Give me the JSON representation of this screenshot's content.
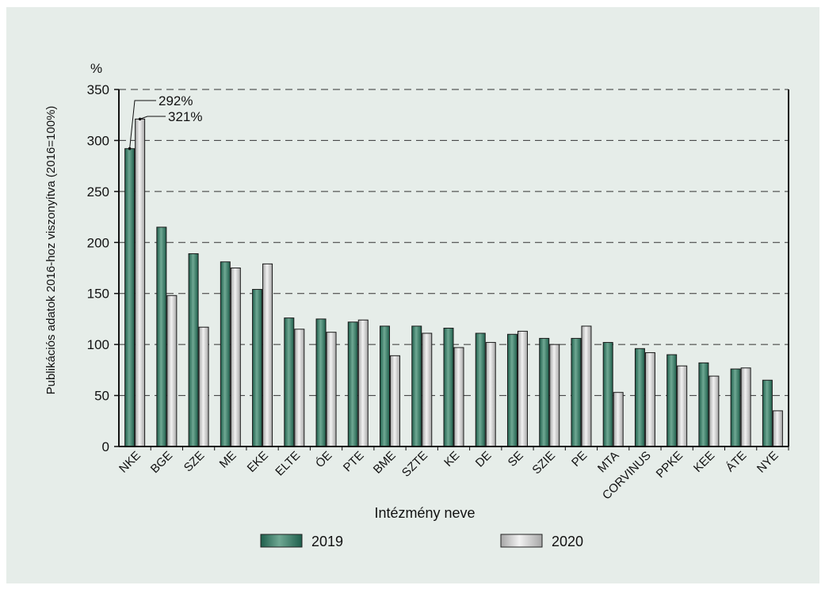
{
  "chart_data": {
    "type": "bar",
    "title": "",
    "ylabel": "Publikációs adatok 2016-hoz viszonyítva (2016=100%)",
    "xlabel": "Intézmény neve",
    "yunit": "%",
    "ylim": [
      0,
      350
    ],
    "yticks": [
      0,
      50,
      100,
      150,
      200,
      250,
      300,
      350
    ],
    "grid": "horizontal dashed",
    "legend_position": "bottom",
    "categories": [
      "NKE",
      "BGE",
      "SZE",
      "ME",
      "EKE",
      "ELTE",
      "ÓE",
      "PTE",
      "BME",
      "SZTE",
      "KE",
      "DE",
      "SE",
      "SZIE",
      "PE",
      "MTA",
      "CORVINUS",
      "PPKE",
      "KEE",
      "ÁTE",
      "NYE"
    ],
    "series": [
      {
        "name": "2019",
        "color": "#2e7d67",
        "values": [
          292,
          215,
          189,
          181,
          154,
          126,
          125,
          122,
          118,
          118,
          116,
          111,
          110,
          106,
          106,
          102,
          96,
          90,
          82,
          76,
          65
        ]
      },
      {
        "name": "2020",
        "color": "#cfcfcf",
        "values": [
          321,
          148,
          117,
          175,
          179,
          115,
          112,
          124,
          89,
          111,
          97,
          102,
          113,
          100,
          118,
          53,
          92,
          79,
          69,
          77,
          35
        ]
      }
    ],
    "annotations": [
      {
        "text": "292%",
        "category": "NKE",
        "series": "2019",
        "value": 292
      },
      {
        "text": "321%",
        "category": "NKE",
        "series": "2020",
        "value": 321
      }
    ]
  }
}
